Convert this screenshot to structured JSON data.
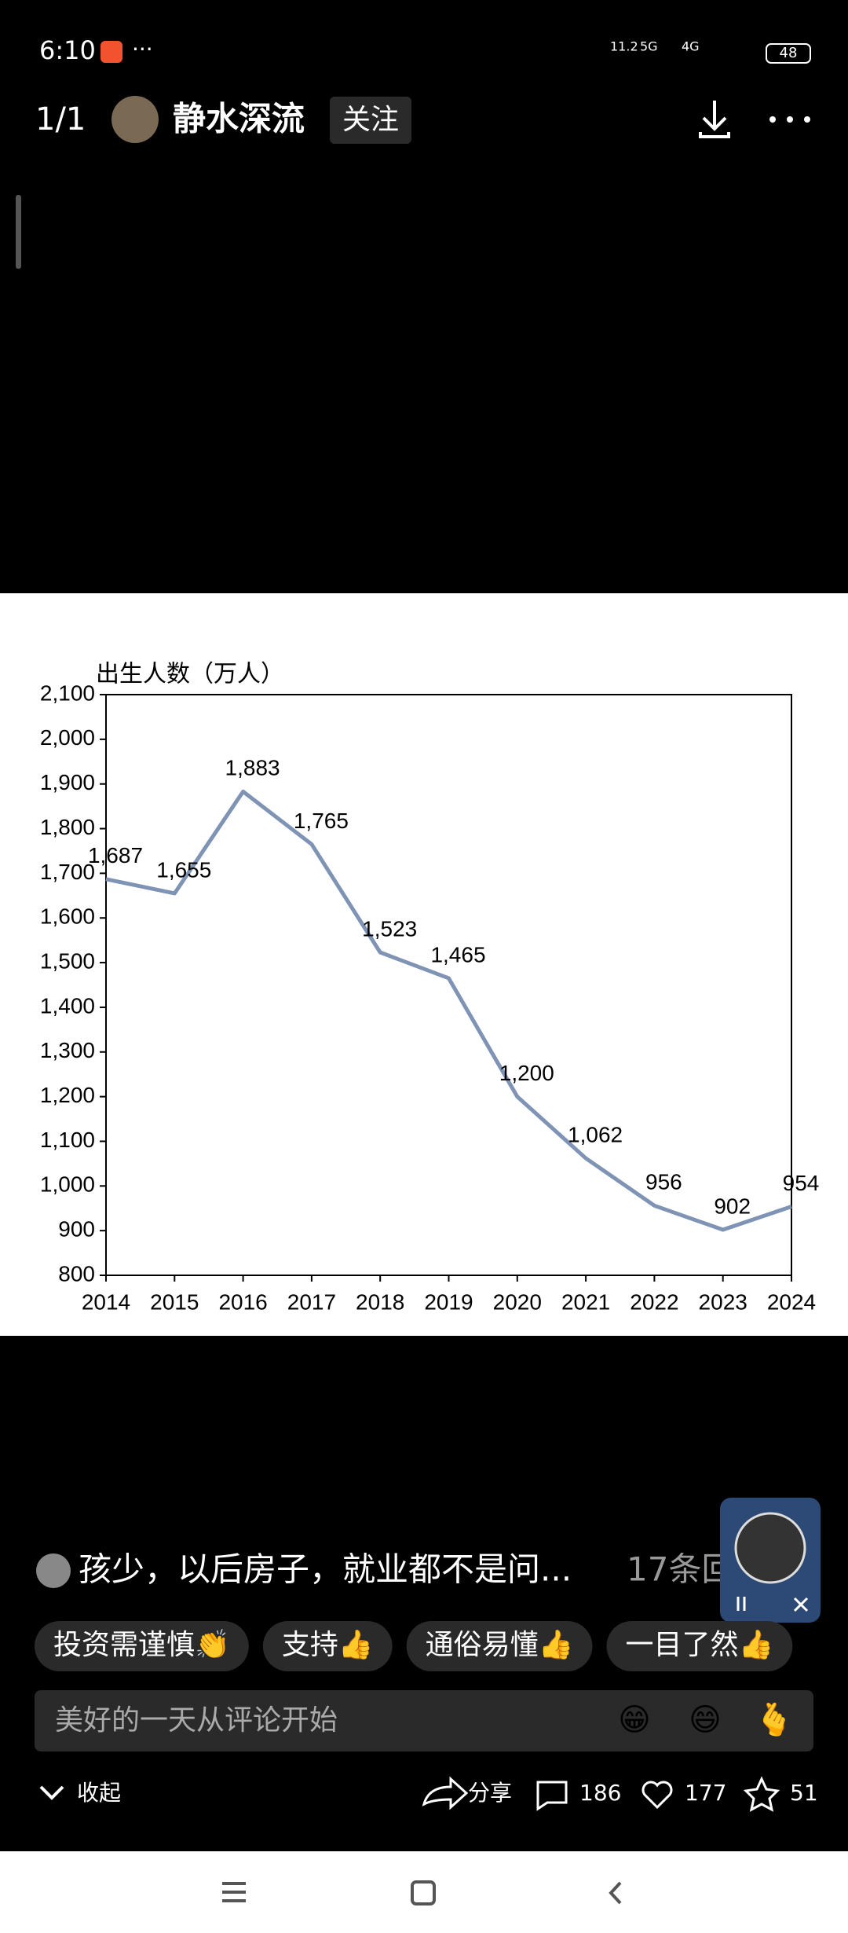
{
  "status_bar": {
    "time": "6:10",
    "speed": "11.2",
    "net1": "5G",
    "net2": "4G",
    "battery": "48"
  },
  "header": {
    "page": "1/1",
    "author": "静水深流",
    "follow": "关注"
  },
  "chart_data": {
    "type": "line",
    "y_label": "出生人数（万人）",
    "x": [
      2014,
      2015,
      2016,
      2017,
      2018,
      2019,
      2020,
      2021,
      2022,
      2023,
      2024
    ],
    "values": [
      1687,
      1655,
      1883,
      1765,
      1523,
      1465,
      1200,
      1062,
      956,
      902,
      954
    ],
    "value_labels": [
      "1,687",
      "1,655",
      "1,883",
      "1,765",
      "1,523",
      "1,465",
      "1,200",
      "1,062",
      "956",
      "902",
      "954"
    ],
    "color": "#7f93b5",
    "xlim": [
      2014,
      2024
    ],
    "xticks": [
      2014,
      2015,
      2016,
      2017,
      2018,
      2019,
      2020,
      2021,
      2022,
      2023,
      2024
    ],
    "ylim": [
      800,
      2100
    ],
    "yticks": [
      800,
      900,
      {
        "value": 1000,
        "label": "1,000"
      },
      {
        "value": 1100,
        "label": "1,100"
      },
      {
        "value": 1200,
        "label": "1,200"
      },
      {
        "value": 1300,
        "label": "1,300"
      },
      {
        "value": 1400,
        "label": "1,400"
      },
      {
        "value": 1500,
        "label": "1,500"
      },
      {
        "value": 1600,
        "label": "1,600"
      },
      {
        "value": 1700,
        "label": "1,700"
      },
      {
        "value": 1800,
        "label": "1,800"
      },
      {
        "value": 1900,
        "label": "1,900"
      },
      {
        "value": 2000,
        "label": "2,000"
      },
      {
        "value": 2100,
        "label": "2,100"
      }
    ]
  },
  "comment": {
    "text": "孩少，以后房子，就业都不是问...",
    "more": "17条回"
  },
  "quick_replies": [
    "投资需谨慎👏",
    "支持👍",
    "通俗易懂👍",
    "一目了然👍"
  ],
  "input": {
    "placeholder": "美好的一天从评论开始",
    "emojis": [
      "😁",
      "😄",
      "🫰"
    ]
  },
  "footer": {
    "collapse": "收起",
    "share": "分享",
    "comments": 186,
    "likes": 177,
    "stars": 51
  }
}
